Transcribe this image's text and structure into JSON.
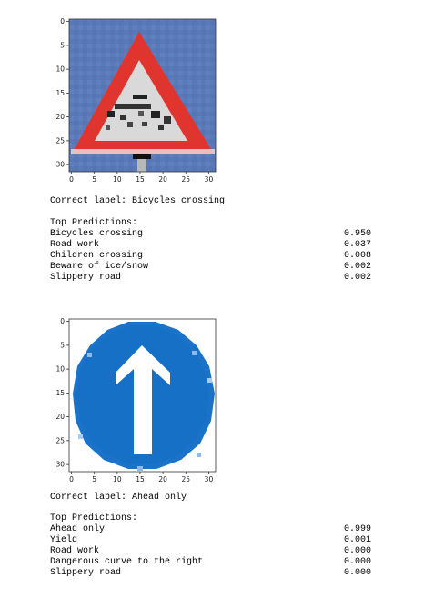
{
  "samples": [
    {
      "image_icon": "bicycles-crossing-sign-icon",
      "axis": {
        "x_ticks": [
          "0",
          "5",
          "10",
          "15",
          "20",
          "25",
          "30"
        ],
        "y_ticks": [
          "0",
          "5",
          "10",
          "15",
          "20",
          "25",
          "30"
        ]
      },
      "correct_label": "Correct label: Bicycles crossing",
      "predictions_header": "Top Predictions:",
      "predictions": [
        {
          "label": "Bicycles crossing",
          "prob": "0.950"
        },
        {
          "label": "Road work",
          "prob": "0.037"
        },
        {
          "label": "Children crossing",
          "prob": "0.008"
        },
        {
          "label": "Beware of ice/snow",
          "prob": "0.002"
        },
        {
          "label": "Slippery road",
          "prob": "0.002"
        }
      ]
    },
    {
      "image_icon": "ahead-only-sign-icon",
      "axis": {
        "x_ticks": [
          "0",
          "5",
          "10",
          "15",
          "20",
          "25",
          "30"
        ],
        "y_ticks": [
          "0",
          "5",
          "10",
          "15",
          "20",
          "25",
          "30"
        ]
      },
      "correct_label": "Correct label: Ahead only",
      "predictions_header": "Top Predictions:",
      "predictions": [
        {
          "label": "Ahead only",
          "prob": "0.999"
        },
        {
          "label": "Yield",
          "prob": "0.001"
        },
        {
          "label": "Road work",
          "prob": "0.000"
        },
        {
          "label": "Dangerous curve to the right",
          "prob": "0.000"
        },
        {
          "label": "Slippery road",
          "prob": "0.000"
        }
      ]
    }
  ]
}
